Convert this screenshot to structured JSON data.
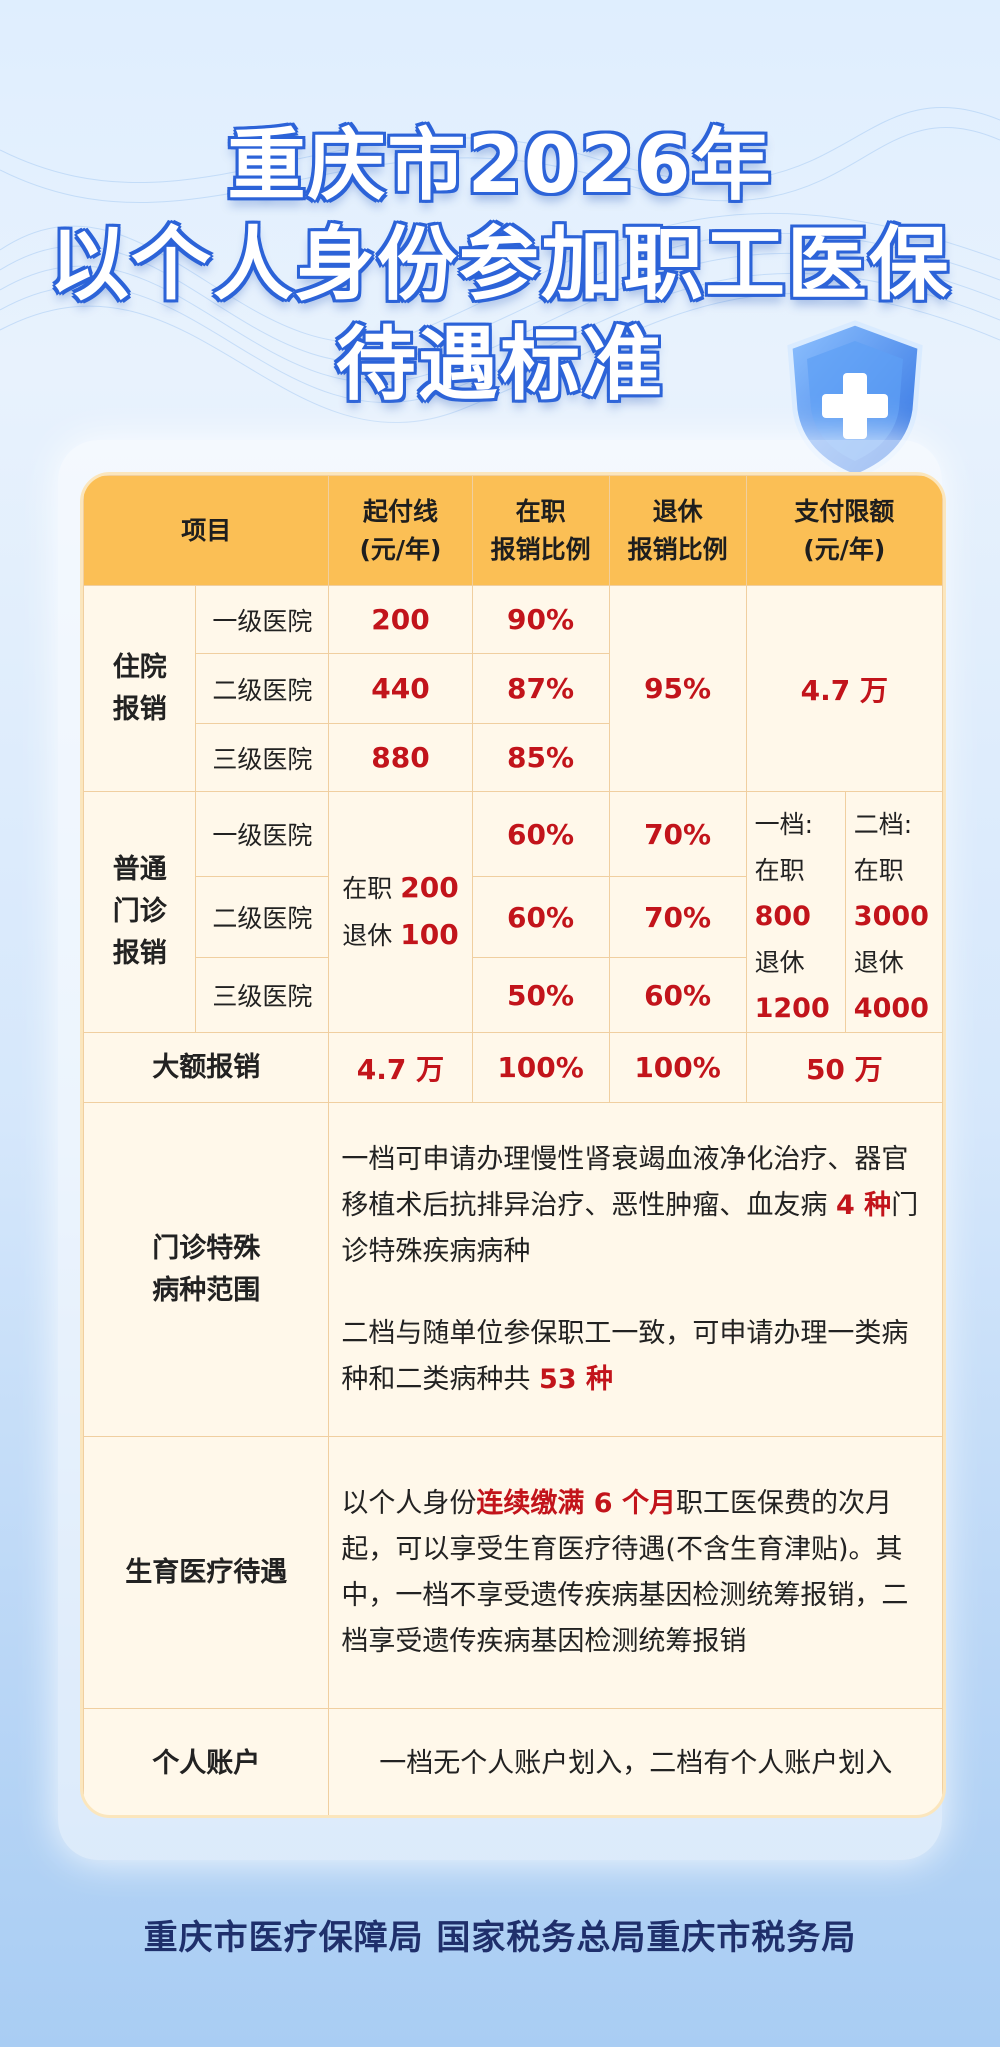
{
  "title": {
    "line1": "重庆市2026年",
    "line2": "以个人身份参加职工医保",
    "line3": "待遇标准"
  },
  "header": {
    "item": "项目",
    "deductible_l1": "起付线",
    "deductible_l2": "(元/年)",
    "employed_l1": "在职",
    "employed_l2": "报销比例",
    "retired_l1": "退休",
    "retired_l2": "报销比例",
    "limit_l1": "支付限额",
    "limit_l2": "(元/年)"
  },
  "inpatient": {
    "label_l1": "住院",
    "label_l2": "报销",
    "rows": [
      {
        "level": "一级医院",
        "deductible": "200",
        "employed": "90%"
      },
      {
        "level": "二级医院",
        "deductible": "440",
        "employed": "87%"
      },
      {
        "level": "三级医院",
        "deductible": "880",
        "employed": "85%"
      }
    ],
    "retired": "95%",
    "limit": "4.7 万"
  },
  "outpatient": {
    "label_l1": "普通",
    "label_l2": "门诊",
    "label_l3": "报销",
    "rows": [
      {
        "level": "一级医院",
        "employed": "60%",
        "retired": "70%"
      },
      {
        "level": "二级医院",
        "employed": "60%",
        "retired": "70%"
      },
      {
        "level": "三级医院",
        "employed": "50%",
        "retired": "60%"
      }
    ],
    "deductible_employed_label": "在职",
    "deductible_employed_value": "200",
    "deductible_retired_label": "退休",
    "deductible_retired_value": "100",
    "tier1": {
      "label": "一档:",
      "employed_label": "在职",
      "employed_value": "800",
      "retired_label": "退休",
      "retired_value": "1200"
    },
    "tier2": {
      "label": "二档:",
      "employed_label": "在职",
      "employed_value": "3000",
      "retired_label": "退休",
      "retired_value": "4000"
    }
  },
  "major": {
    "label": "大额报销",
    "deductible": "4.7 万",
    "employed": "100%",
    "retired": "100%",
    "limit": "50 万"
  },
  "special": {
    "label_l1": "门诊特殊",
    "label_l2": "病种范围",
    "p1_a": "一档可申请办理慢性肾衰竭血液净化治疗、器官移植术后抗排异治疗、恶性肿瘤、血友病 ",
    "p1_b": "4 种",
    "p1_c": "门诊特殊疾病病种",
    "p2_a": "二档与随单位参保职工一致，可申请办理一类病种和二类病种共 ",
    "p2_b": "53 种"
  },
  "maternity": {
    "label": "生育医疗待遇",
    "a": "以个人身份",
    "b": "连续缴满 6 个月",
    "c": "职工医保费的次月起，可以享受生育医疗待遇(不含生育津贴)。其中，一档不享受遗传疾病基因检测统筹报销，二档享受遗传疾病基因检测统筹报销"
  },
  "account": {
    "label": "个人账户",
    "text": "一档无个人账户划入，二档有个人账户划入"
  },
  "footer": "重庆市医疗保障局  国家税务总局重庆市税务局",
  "colors": {
    "header_bg": "#fbbf55",
    "accent_red": "#c2141b",
    "card_bg": "#fff8ea",
    "title_blue": "#2c63d8"
  },
  "icons": [
    "medical-shield-icon"
  ]
}
